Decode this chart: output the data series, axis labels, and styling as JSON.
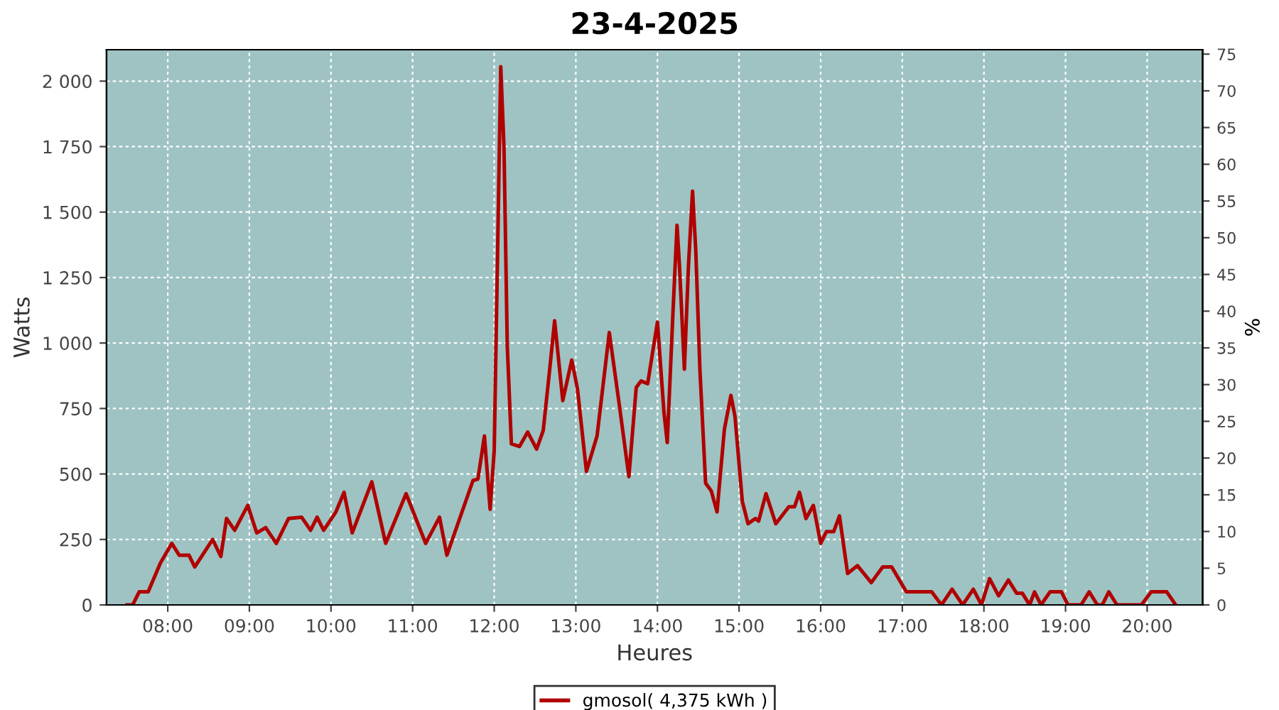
{
  "chart_data": {
    "type": "line",
    "title": "23-4-2025",
    "xlabel": "Heures",
    "ylabel": "Watts",
    "y2label": "%",
    "x": [
      7.5,
      7.57,
      7.65,
      7.76,
      7.91,
      8.05,
      8.14,
      8.26,
      8.33,
      8.55,
      8.65,
      8.72,
      8.82,
      8.98,
      9.09,
      9.2,
      9.33,
      9.48,
      9.64,
      9.75,
      9.83,
      9.91,
      10.06,
      10.16,
      10.26,
      10.5,
      10.67,
      10.92,
      11.16,
      11.33,
      11.42,
      11.74,
      11.8,
      11.88,
      11.95,
      12.0,
      12.08,
      12.12,
      12.16,
      12.21,
      12.31,
      12.41,
      12.52,
      12.6,
      12.68,
      12.74,
      12.84,
      12.95,
      13.02,
      13.13,
      13.26,
      13.41,
      13.53,
      13.65,
      13.74,
      13.8,
      13.88,
      14.0,
      14.08,
      14.12,
      14.19,
      14.24,
      14.27,
      14.33,
      14.38,
      14.43,
      14.47,
      14.52,
      14.59,
      14.66,
      14.73,
      14.82,
      14.9,
      14.95,
      15.04,
      15.11,
      15.2,
      15.24,
      15.33,
      15.45,
      15.61,
      15.68,
      15.74,
      15.82,
      15.91,
      16.0,
      16.07,
      16.16,
      16.23,
      16.33,
      16.45,
      16.62,
      16.76,
      16.87,
      17.05,
      17.36,
      17.48,
      17.61,
      17.74,
      17.87,
      17.97,
      18.07,
      18.18,
      18.3,
      18.4,
      18.47,
      18.56,
      18.62,
      18.7,
      18.81,
      18.95,
      19.03,
      19.19,
      19.29,
      19.39,
      19.45,
      19.53,
      19.63,
      19.93,
      20.05,
      20.24,
      20.35
    ],
    "series": [
      {
        "name": "gmosol( 4,375 kWh )",
        "color": "#b00000",
        "values": [
          0,
          0,
          50,
          50,
          160,
          235,
          190,
          190,
          145,
          250,
          185,
          330,
          285,
          380,
          275,
          295,
          235,
          330,
          335,
          285,
          335,
          285,
          355,
          430,
          275,
          470,
          235,
          425,
          235,
          335,
          190,
          475,
          480,
          645,
          365,
          590,
          2055,
          1745,
          990,
          615,
          605,
          660,
          595,
          665,
          900,
          1085,
          780,
          935,
          825,
          510,
          645,
          1040,
          770,
          490,
          830,
          855,
          845,
          1080,
          735,
          620,
          1115,
          1450,
          1295,
          900,
          1295,
          1580,
          1350,
          900,
          465,
          435,
          355,
          670,
          800,
          720,
          395,
          310,
          330,
          320,
          425,
          310,
          375,
          375,
          430,
          330,
          380,
          235,
          280,
          280,
          340,
          120,
          150,
          85,
          145,
          145,
          50,
          50,
          0,
          60,
          0,
          60,
          0,
          100,
          35,
          95,
          45,
          45,
          0,
          50,
          0,
          50,
          50,
          0,
          0,
          50,
          0,
          0,
          50,
          0,
          0,
          50,
          50,
          0
        ]
      }
    ],
    "xlim": [
      7.25,
      20.68
    ],
    "xticks": [
      {
        "value": 8,
        "label": "08:00"
      },
      {
        "value": 9,
        "label": "09:00"
      },
      {
        "value": 10,
        "label": "10:00"
      },
      {
        "value": 11,
        "label": "11:00"
      },
      {
        "value": 12,
        "label": "12:00"
      },
      {
        "value": 13,
        "label": "13:00"
      },
      {
        "value": 14,
        "label": "14:00"
      },
      {
        "value": 15,
        "label": "15:00"
      },
      {
        "value": 16,
        "label": "16:00"
      },
      {
        "value": 17,
        "label": "17:00"
      },
      {
        "value": 18,
        "label": "18:00"
      },
      {
        "value": 19,
        "label": "19:00"
      },
      {
        "value": 20,
        "label": "20:00"
      }
    ],
    "ylim": [
      0,
      2120
    ],
    "yticks": [
      0,
      250,
      500,
      750,
      {
        "value": 1000,
        "label": "1 000"
      },
      {
        "value": 1250,
        "label": "1 250"
      },
      {
        "value": 1500,
        "label": "1 500"
      },
      {
        "value": 1750,
        "label": "1 750"
      },
      {
        "value": 2000,
        "label": "2 000"
      }
    ],
    "y2lim": [
      0,
      75.6
    ],
    "y2ticks": [
      0,
      5,
      10,
      15,
      20,
      25,
      30,
      35,
      40,
      45,
      50,
      55,
      60,
      65,
      70,
      75
    ],
    "grid": true,
    "legend": "bottom",
    "line_style": "solid",
    "marker": "none"
  }
}
